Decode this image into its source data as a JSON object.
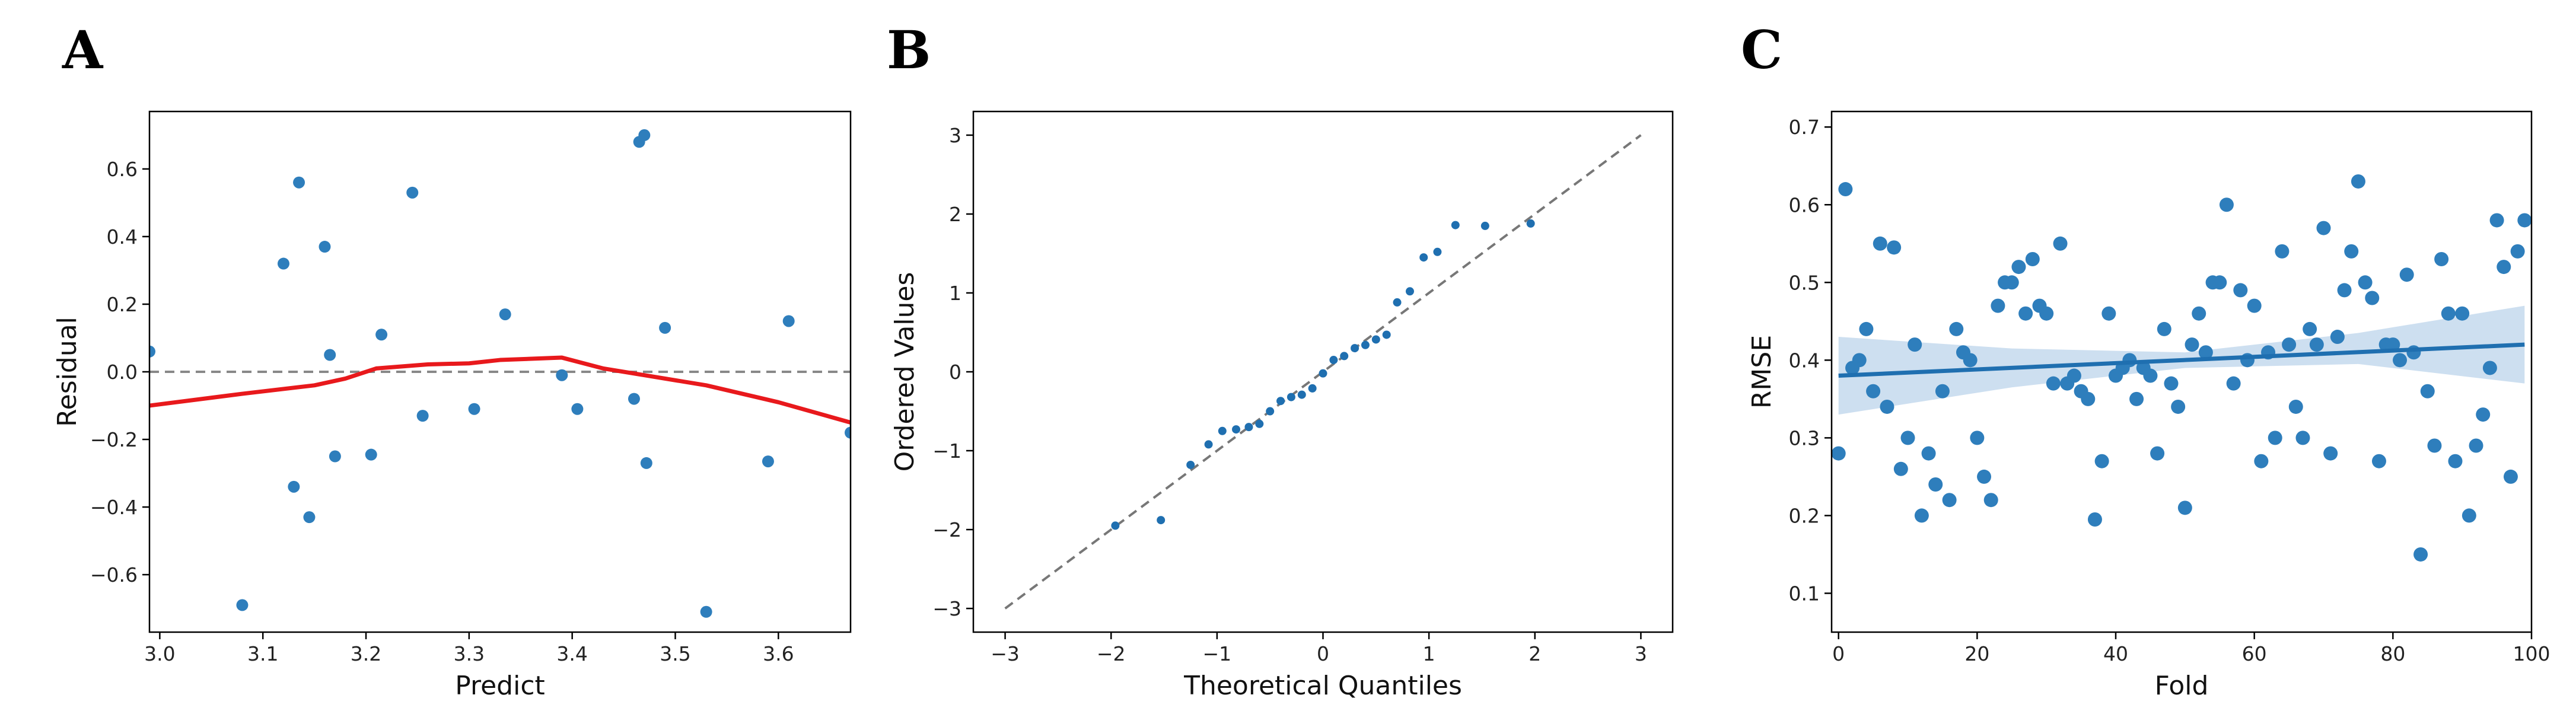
{
  "chart_data": [
    {
      "panel": "A",
      "type": "scatter",
      "xlabel": "Predict",
      "ylabel": "Residual",
      "xlim": [
        2.99,
        3.67
      ],
      "ylim": [
        -0.77,
        0.77
      ],
      "xticks": [
        3.0,
        3.1,
        3.2,
        3.3,
        3.4,
        3.5,
        3.6
      ],
      "xtick_labels": [
        "3.0",
        "3.1",
        "3.2",
        "3.3",
        "3.4",
        "3.5",
        "3.6"
      ],
      "yticks": [
        -0.6,
        -0.4,
        -0.2,
        0.0,
        0.2,
        0.4,
        0.6
      ],
      "ytick_labels": [
        "−0.6",
        "−0.4",
        "−0.2",
        "0.0",
        "0.2",
        "0.4",
        "0.6"
      ],
      "grid": false,
      "point_color": "#2e7ebc",
      "points": [
        {
          "x": 2.99,
          "y": 0.06
        },
        {
          "x": 3.08,
          "y": -0.69
        },
        {
          "x": 3.12,
          "y": 0.32
        },
        {
          "x": 3.13,
          "y": -0.34
        },
        {
          "x": 3.135,
          "y": 0.56
        },
        {
          "x": 3.145,
          "y": -0.43
        },
        {
          "x": 3.16,
          "y": 0.37
        },
        {
          "x": 3.165,
          "y": 0.05
        },
        {
          "x": 3.17,
          "y": -0.25
        },
        {
          "x": 3.205,
          "y": -0.245
        },
        {
          "x": 3.215,
          "y": 0.11
        },
        {
          "x": 3.245,
          "y": 0.53
        },
        {
          "x": 3.255,
          "y": -0.13
        },
        {
          "x": 3.305,
          "y": -0.11
        },
        {
          "x": 3.335,
          "y": 0.17
        },
        {
          "x": 3.39,
          "y": -0.01
        },
        {
          "x": 3.405,
          "y": -0.11
        },
        {
          "x": 3.46,
          "y": -0.08
        },
        {
          "x": 3.465,
          "y": 0.68
        },
        {
          "x": 3.47,
          "y": 0.7
        },
        {
          "x": 3.472,
          "y": -0.27
        },
        {
          "x": 3.49,
          "y": 0.13
        },
        {
          "x": 3.53,
          "y": -0.71
        },
        {
          "x": 3.59,
          "y": -0.265
        },
        {
          "x": 3.61,
          "y": 0.15
        },
        {
          "x": 3.67,
          "y": -0.18
        }
      ],
      "reference_line": {
        "y": 0.0,
        "style": "dashed",
        "color": "#888888"
      },
      "smooth_line": {
        "color": "#e8191c",
        "points": [
          {
            "x": 2.99,
            "y": -0.1
          },
          {
            "x": 3.08,
            "y": -0.065
          },
          {
            "x": 3.15,
            "y": -0.04
          },
          {
            "x": 3.18,
            "y": -0.02
          },
          {
            "x": 3.21,
            "y": 0.01
          },
          {
            "x": 3.26,
            "y": 0.022
          },
          {
            "x": 3.3,
            "y": 0.025
          },
          {
            "x": 3.33,
            "y": 0.035
          },
          {
            "x": 3.39,
            "y": 0.042
          },
          {
            "x": 3.43,
            "y": 0.01
          },
          {
            "x": 3.47,
            "y": -0.01
          },
          {
            "x": 3.53,
            "y": -0.04
          },
          {
            "x": 3.6,
            "y": -0.09
          },
          {
            "x": 3.67,
            "y": -0.15
          }
        ]
      }
    },
    {
      "panel": "B",
      "type": "scatter",
      "xlabel": "Theoretical Quantiles",
      "ylabel": "Ordered Values",
      "xlim": [
        -3.3,
        3.3
      ],
      "ylim": [
        -3.3,
        3.3
      ],
      "xticks": [
        -3,
        -2,
        -1,
        0,
        1,
        2,
        3
      ],
      "xtick_labels": [
        "−3",
        "−2",
        "−1",
        "0",
        "1",
        "2",
        "3"
      ],
      "yticks": [
        -3,
        -2,
        -1,
        0,
        1,
        2,
        3
      ],
      "ytick_labels": [
        "−3",
        "−2",
        "−1",
        "0",
        "1",
        "2",
        "3"
      ],
      "grid": false,
      "point_color": "#1f6fb0",
      "points": [
        {
          "x": -1.96,
          "y": -1.95
        },
        {
          "x": -1.53,
          "y": -1.88
        },
        {
          "x": -1.25,
          "y": -1.18
        },
        {
          "x": -1.08,
          "y": -0.92
        },
        {
          "x": -0.95,
          "y": -0.75
        },
        {
          "x": -0.82,
          "y": -0.73
        },
        {
          "x": -0.7,
          "y": -0.7
        },
        {
          "x": -0.6,
          "y": -0.66
        },
        {
          "x": -0.5,
          "y": -0.5
        },
        {
          "x": -0.4,
          "y": -0.37
        },
        {
          "x": -0.3,
          "y": -0.32
        },
        {
          "x": -0.2,
          "y": -0.29
        },
        {
          "x": -0.1,
          "y": -0.21
        },
        {
          "x": 0.0,
          "y": -0.02
        },
        {
          "x": 0.1,
          "y": 0.15
        },
        {
          "x": 0.2,
          "y": 0.2
        },
        {
          "x": 0.3,
          "y": 0.3
        },
        {
          "x": 0.4,
          "y": 0.34
        },
        {
          "x": 0.5,
          "y": 0.41
        },
        {
          "x": 0.6,
          "y": 0.47
        },
        {
          "x": 0.7,
          "y": 0.88
        },
        {
          "x": 0.82,
          "y": 1.02
        },
        {
          "x": 0.95,
          "y": 1.45
        },
        {
          "x": 1.08,
          "y": 1.52
        },
        {
          "x": 1.25,
          "y": 1.86
        },
        {
          "x": 1.53,
          "y": 1.85
        },
        {
          "x": 1.96,
          "y": 1.88
        }
      ],
      "reference_line": {
        "from": [
          -3,
          -3
        ],
        "to": [
          3,
          3
        ],
        "style": "dashed",
        "color": "#777777"
      }
    },
    {
      "panel": "C",
      "type": "scatter",
      "xlabel": "Fold",
      "ylabel": "RMSE",
      "xlim": [
        -1,
        100
      ],
      "ylim": [
        0.05,
        0.72
      ],
      "xticks": [
        0,
        20,
        40,
        60,
        80,
        100
      ],
      "xtick_labels": [
        "0",
        "20",
        "40",
        "60",
        "80",
        "100"
      ],
      "yticks": [
        0.1,
        0.2,
        0.3,
        0.4,
        0.5,
        0.6,
        0.7
      ],
      "ytick_labels": [
        "0.1",
        "0.2",
        "0.3",
        "0.4",
        "0.5",
        "0.6",
        "0.7"
      ],
      "grid": false,
      "point_color": "#2e7ebc",
      "points": [
        {
          "x": 0,
          "y": 0.28
        },
        {
          "x": 1,
          "y": 0.62
        },
        {
          "x": 2,
          "y": 0.39
        },
        {
          "x": 3,
          "y": 0.4
        },
        {
          "x": 4,
          "y": 0.44
        },
        {
          "x": 5,
          "y": 0.36
        },
        {
          "x": 6,
          "y": 0.55
        },
        {
          "x": 7,
          "y": 0.34
        },
        {
          "x": 8,
          "y": 0.545
        },
        {
          "x": 9,
          "y": 0.26
        },
        {
          "x": 10,
          "y": 0.3
        },
        {
          "x": 11,
          "y": 0.42
        },
        {
          "x": 12,
          "y": 0.2
        },
        {
          "x": 13,
          "y": 0.28
        },
        {
          "x": 14,
          "y": 0.24
        },
        {
          "x": 15,
          "y": 0.36
        },
        {
          "x": 16,
          "y": 0.22
        },
        {
          "x": 17,
          "y": 0.44
        },
        {
          "x": 18,
          "y": 0.41
        },
        {
          "x": 19,
          "y": 0.4
        },
        {
          "x": 20,
          "y": 0.3
        },
        {
          "x": 21,
          "y": 0.25
        },
        {
          "x": 22,
          "y": 0.22
        },
        {
          "x": 23,
          "y": 0.47
        },
        {
          "x": 24,
          "y": 0.5
        },
        {
          "x": 25,
          "y": 0.5
        },
        {
          "x": 26,
          "y": 0.52
        },
        {
          "x": 27,
          "y": 0.46
        },
        {
          "x": 28,
          "y": 0.53
        },
        {
          "x": 29,
          "y": 0.47
        },
        {
          "x": 30,
          "y": 0.46
        },
        {
          "x": 31,
          "y": 0.37
        },
        {
          "x": 32,
          "y": 0.55
        },
        {
          "x": 33,
          "y": 0.37
        },
        {
          "x": 34,
          "y": 0.38
        },
        {
          "x": 35,
          "y": 0.36
        },
        {
          "x": 36,
          "y": 0.35
        },
        {
          "x": 37,
          "y": 0.195
        },
        {
          "x": 38,
          "y": 0.27
        },
        {
          "x": 39,
          "y": 0.46
        },
        {
          "x": 40,
          "y": 0.38
        },
        {
          "x": 41,
          "y": 0.39
        },
        {
          "x": 42,
          "y": 0.4
        },
        {
          "x": 43,
          "y": 0.35
        },
        {
          "x": 44,
          "y": 0.39
        },
        {
          "x": 45,
          "y": 0.38
        },
        {
          "x": 46,
          "y": 0.28
        },
        {
          "x": 47,
          "y": 0.44
        },
        {
          "x": 48,
          "y": 0.37
        },
        {
          "x": 49,
          "y": 0.34
        },
        {
          "x": 50,
          "y": 0.21
        },
        {
          "x": 51,
          "y": 0.42
        },
        {
          "x": 52,
          "y": 0.46
        },
        {
          "x": 53,
          "y": 0.41
        },
        {
          "x": 54,
          "y": 0.5
        },
        {
          "x": 55,
          "y": 0.5
        },
        {
          "x": 56,
          "y": 0.6
        },
        {
          "x": 57,
          "y": 0.37
        },
        {
          "x": 58,
          "y": 0.49
        },
        {
          "x": 59,
          "y": 0.4
        },
        {
          "x": 60,
          "y": 0.47
        },
        {
          "x": 61,
          "y": 0.27
        },
        {
          "x": 62,
          "y": 0.41
        },
        {
          "x": 63,
          "y": 0.3
        },
        {
          "x": 64,
          "y": 0.54
        },
        {
          "x": 65,
          "y": 0.42
        },
        {
          "x": 66,
          "y": 0.34
        },
        {
          "x": 67,
          "y": 0.3
        },
        {
          "x": 68,
          "y": 0.44
        },
        {
          "x": 69,
          "y": 0.42
        },
        {
          "x": 70,
          "y": 0.57
        },
        {
          "x": 71,
          "y": 0.28
        },
        {
          "x": 72,
          "y": 0.43
        },
        {
          "x": 73,
          "y": 0.49
        },
        {
          "x": 74,
          "y": 0.54
        },
        {
          "x": 75,
          "y": 0.63
        },
        {
          "x": 76,
          "y": 0.5
        },
        {
          "x": 77,
          "y": 0.48
        },
        {
          "x": 78,
          "y": 0.27
        },
        {
          "x": 79,
          "y": 0.42
        },
        {
          "x": 80,
          "y": 0.42
        },
        {
          "x": 81,
          "y": 0.4
        },
        {
          "x": 82,
          "y": 0.51
        },
        {
          "x": 83,
          "y": 0.41
        },
        {
          "x": 84,
          "y": 0.15
        },
        {
          "x": 85,
          "y": 0.36
        },
        {
          "x": 86,
          "y": 0.29
        },
        {
          "x": 87,
          "y": 0.53
        },
        {
          "x": 88,
          "y": 0.46
        },
        {
          "x": 89,
          "y": 0.27
        },
        {
          "x": 90,
          "y": 0.46
        },
        {
          "x": 91,
          "y": 0.2
        },
        {
          "x": 92,
          "y": 0.29
        },
        {
          "x": 93,
          "y": 0.33
        },
        {
          "x": 94,
          "y": 0.39
        },
        {
          "x": 95,
          "y": 0.58
        },
        {
          "x": 96,
          "y": 0.52
        },
        {
          "x": 97,
          "y": 0.25
        },
        {
          "x": 98,
          "y": 0.54
        },
        {
          "x": 99,
          "y": 0.58
        }
      ],
      "regression_line": {
        "from": [
          0,
          0.38
        ],
        "to": [
          99,
          0.42
        ],
        "color": "#1f6fb0"
      },
      "confidence_band": {
        "color": "#b8d2ea",
        "upper": [
          {
            "x": 0,
            "y": 0.43
          },
          {
            "x": 25,
            "y": 0.415
          },
          {
            "x": 50,
            "y": 0.41
          },
          {
            "x": 75,
            "y": 0.435
          },
          {
            "x": 99,
            "y": 0.47
          }
        ],
        "lower": [
          {
            "x": 0,
            "y": 0.33
          },
          {
            "x": 25,
            "y": 0.365
          },
          {
            "x": 50,
            "y": 0.39
          },
          {
            "x": 75,
            "y": 0.395
          },
          {
            "x": 99,
            "y": 0.37
          }
        ]
      }
    }
  ]
}
